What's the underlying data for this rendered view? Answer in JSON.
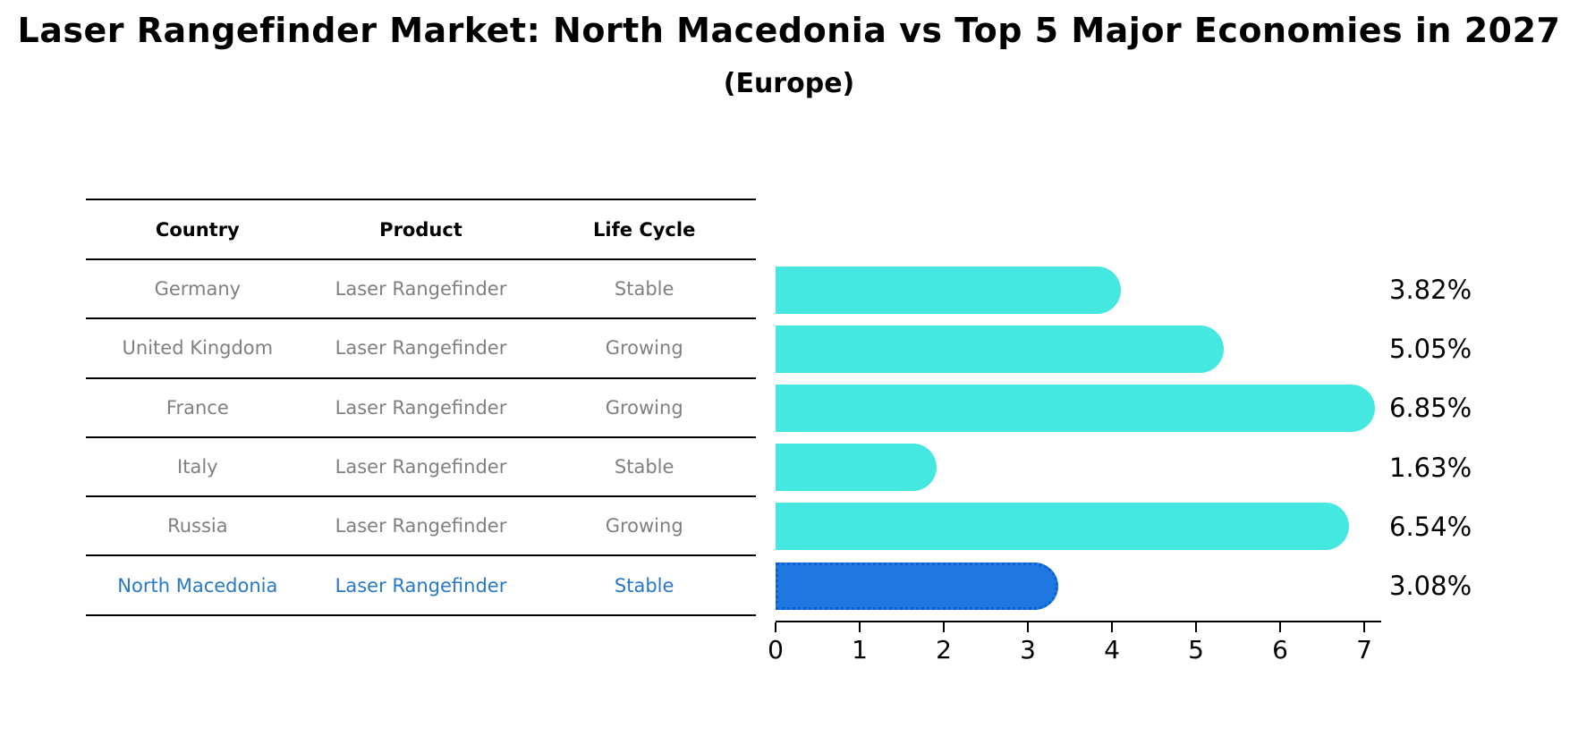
{
  "title": "Laser Rangefinder Market: North Macedonia vs Top 5 Major Economies in 2027",
  "subtitle": "(Europe)",
  "table": {
    "headers": {
      "country": "Country",
      "product": "Product",
      "life_cycle": "Life Cycle"
    },
    "rows": [
      {
        "country": "Germany",
        "product": "Laser Rangefinder",
        "life_cycle": "Stable",
        "highlighted": false
      },
      {
        "country": "United Kingdom",
        "product": "Laser Rangefinder",
        "life_cycle": "Growing",
        "highlighted": false
      },
      {
        "country": "France",
        "product": "Laser Rangefinder",
        "life_cycle": "Growing",
        "highlighted": false
      },
      {
        "country": "Italy",
        "product": "Laser Rangefinder",
        "life_cycle": "Stable",
        "highlighted": false
      },
      {
        "country": "Russia",
        "product": "Laser Rangefinder",
        "life_cycle": "Growing",
        "highlighted": false
      },
      {
        "country": "North Macedonia",
        "product": "Laser Rangefinder",
        "life_cycle": "Stable",
        "highlighted": true
      }
    ]
  },
  "chart_data": {
    "type": "bar",
    "orientation": "horizontal",
    "title": "Laser Rangefinder Market: North Macedonia vs Top 5 Major Economies in 2027",
    "subtitle": "(Europe)",
    "categories": [
      "Germany",
      "United Kingdom",
      "France",
      "Italy",
      "Russia",
      "North Macedonia"
    ],
    "values": [
      3.82,
      5.05,
      6.85,
      1.63,
      6.54,
      3.08
    ],
    "value_labels": [
      "3.82%",
      "5.05%",
      "6.85%",
      "1.63%",
      "6.54%",
      "3.08%"
    ],
    "unit": "%",
    "xlabel": "",
    "ylabel": "",
    "xlim": [
      0,
      7.2
    ],
    "x_ticks": [
      "0",
      "1",
      "2",
      "3",
      "4",
      "5",
      "6",
      "7"
    ],
    "grid": false,
    "legend": false,
    "highlight_index": 5,
    "colors": {
      "bar": "#45E8E0",
      "highlight_bar": "#1E78E0",
      "highlight_bar_border": "#0C5ED8",
      "highlight_text": "#2878C8",
      "row_text": "#808080",
      "axis": "#000000"
    }
  }
}
